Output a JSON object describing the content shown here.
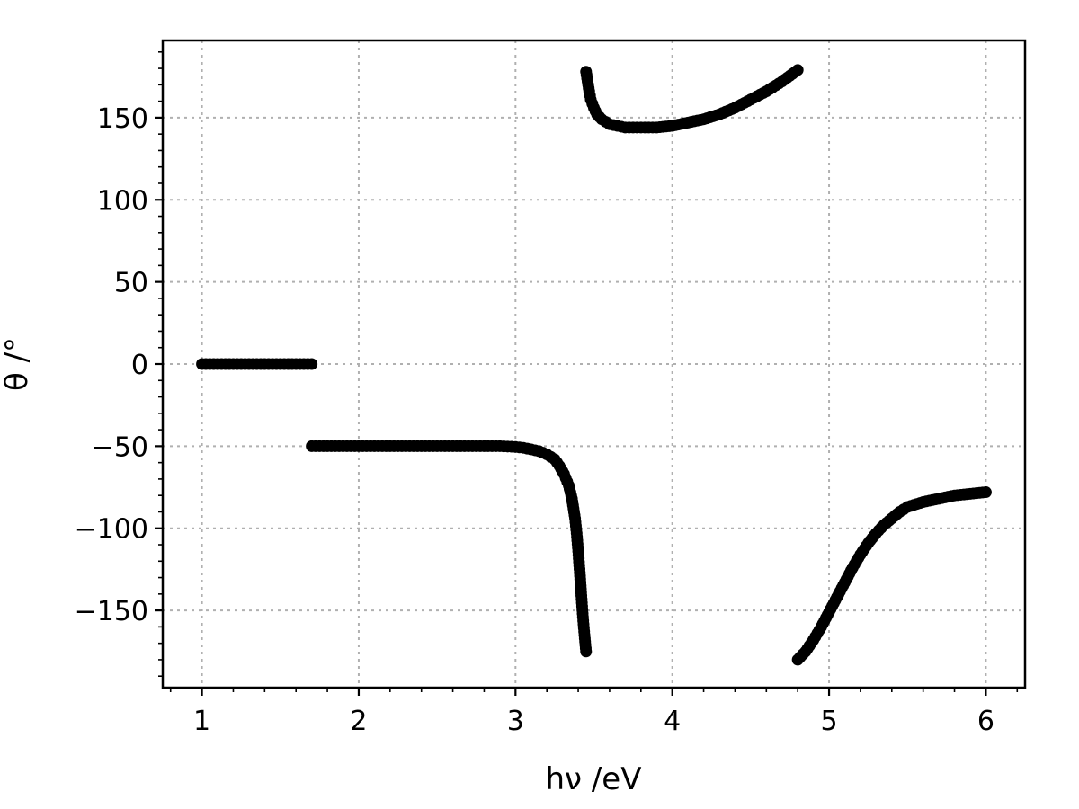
{
  "chart_data": {
    "type": "scatter",
    "title": "",
    "xlabel": "hν /eV",
    "ylabel": "θ /°",
    "xlim": [
      0.75,
      6.25
    ],
    "ylim": [
      -197,
      197
    ],
    "xticks": [
      1,
      2,
      3,
      4,
      5,
      6
    ],
    "xtick_labels": [
      "1",
      "2",
      "3",
      "4",
      "5",
      "6"
    ],
    "yticks": [
      -150,
      -100,
      -50,
      0,
      50,
      100,
      150
    ],
    "ytick_labels": [
      "−150",
      "−100",
      "−50",
      "0",
      "50",
      "100",
      "150"
    ],
    "x_minor_step": 0.2,
    "y_minor_step": 10,
    "grid": true,
    "legend": "none",
    "marker_color": "#000000",
    "series": [
      {
        "x": [
          1.0,
          1.05,
          1.1,
          1.15,
          1.2,
          1.25,
          1.3,
          1.35,
          1.4,
          1.45,
          1.5,
          1.55,
          1.6,
          1.65,
          1.7
        ],
        "y": [
          0,
          0,
          0,
          0,
          0,
          0,
          0,
          0,
          0,
          0,
          0,
          0,
          0,
          0,
          0
        ]
      },
      {
        "x": [
          1.7,
          1.8,
          1.9,
          2.0,
          2.1,
          2.2,
          2.3,
          2.4,
          2.5,
          2.6,
          2.7,
          2.8,
          2.9,
          3.0,
          3.05,
          3.1,
          3.15,
          3.2,
          3.25,
          3.28,
          3.31,
          3.34,
          3.36,
          3.38,
          3.39,
          3.4,
          3.41,
          3.42,
          3.43,
          3.44,
          3.45
        ],
        "y": [
          -50,
          -50,
          -50,
          -50,
          -50,
          -50,
          -50,
          -50,
          -50,
          -50,
          -50,
          -50,
          -50,
          -50.5,
          -51,
          -52,
          -53,
          -55,
          -58,
          -62,
          -67,
          -74,
          -82,
          -94,
          -103,
          -114,
          -127,
          -141,
          -154,
          -165,
          -175
        ]
      },
      {
        "x": [
          3.45,
          3.46,
          3.47,
          3.48,
          3.5,
          3.52,
          3.55,
          3.6,
          3.65,
          3.7,
          3.8,
          3.9,
          4.0,
          4.1,
          4.2,
          4.3,
          4.4,
          4.5,
          4.6,
          4.7,
          4.8
        ],
        "y": [
          178,
          172,
          166,
          161,
          156,
          152,
          149,
          146,
          145,
          144,
          144,
          144,
          145,
          147,
          149,
          152,
          156,
          161,
          166,
          172,
          179
        ]
      },
      {
        "x": [
          4.8,
          4.85,
          4.9,
          4.95,
          5.0,
          5.05,
          5.1,
          5.15,
          5.2,
          5.25,
          5.3,
          5.35,
          5.4,
          5.45,
          5.5,
          5.6,
          5.7,
          5.8,
          5.9,
          6.0
        ],
        "y": [
          -180,
          -175,
          -168,
          -160,
          -151,
          -142,
          -133,
          -124,
          -116,
          -109,
          -103,
          -98,
          -94,
          -90,
          -87,
          -84,
          -82,
          -80,
          -79,
          -78
        ]
      }
    ]
  }
}
